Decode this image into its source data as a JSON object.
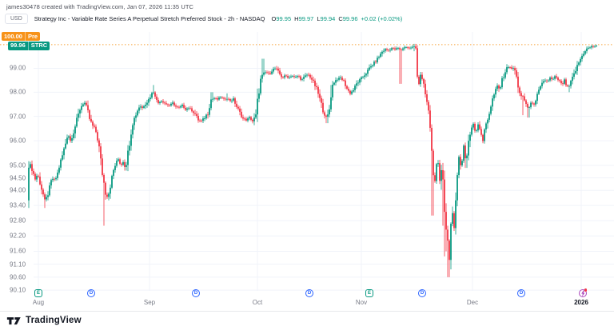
{
  "attribution": "james30478 created with TradingView.com, Jan 07, 2026 11:35 UTC",
  "header": {
    "currency": "USD",
    "title": "Strategy Inc - Variable Rate Series A Perpetual Stretch Preferred Stock - 2h - NASDAQ",
    "ohlc": {
      "o_label": "O",
      "o": "99.95",
      "h_label": "H",
      "h": "99.97",
      "l_label": "L",
      "l": "99.94",
      "c_label": "C",
      "c": "99.96",
      "change": "+0.02 (+0.02%)"
    }
  },
  "price_labels": {
    "pre": {
      "price": "100.00",
      "label": "Pre"
    },
    "current": {
      "price": "99.96",
      "label": "STRC"
    }
  },
  "footer": {
    "brand": "TradingView"
  },
  "colors": {
    "up": "#089981",
    "down": "#f23645",
    "pre_line": "#f7931a",
    "grid": "#f0f3fa",
    "axis_text": "#787b86",
    "dark_text": "#131722"
  },
  "chart_data": {
    "type": "candlestick",
    "title": "Strategy Inc - Variable Rate Series A Perpetual Stretch Preferred Stock",
    "symbol": "STRC",
    "exchange": "NASDAQ",
    "timeframe": "2h",
    "scale_type": "log",
    "price_line_value": 100.0,
    "last_price": 99.96,
    "session_high": 99.97,
    "session_low": 99.94,
    "session_open": 99.95,
    "y_axis_labels": [
      {
        "text": "99.00",
        "value": 99.0
      },
      {
        "text": "98.00",
        "value": 98.0
      },
      {
        "text": "97.00",
        "value": 97.0
      },
      {
        "text": "96.00",
        "value": 96.0
      },
      {
        "text": "95.00",
        "value": 95.0
      },
      {
        "text": "94.50",
        "value": 94.5
      },
      {
        "text": "94.00",
        "value": 94.0
      },
      {
        "text": "93.40",
        "value": 93.4
      },
      {
        "text": "92.80",
        "value": 92.8
      },
      {
        "text": "92.20",
        "value": 92.2
      },
      {
        "text": "91.60",
        "value": 91.6
      },
      {
        "text": "91.10",
        "value": 91.1
      },
      {
        "text": "90.60",
        "value": 90.6
      },
      {
        "text": "90.10",
        "value": 90.1
      }
    ],
    "x_axis_labels": [
      {
        "text": "Aug",
        "x": 48
      },
      {
        "text": "Sep",
        "x": 187
      },
      {
        "text": "Oct",
        "x": 322
      },
      {
        "text": "Nov",
        "x": 452
      },
      {
        "text": "Dec",
        "x": 591
      },
      {
        "text": "2026",
        "x": 727,
        "year": true
      }
    ],
    "markers": [
      {
        "type": "earnings",
        "label": "E",
        "x": 48
      },
      {
        "type": "dividend",
        "label": "D",
        "x": 114
      },
      {
        "type": "dividend",
        "label": "D",
        "x": 245
      },
      {
        "type": "dividend",
        "label": "D",
        "x": 387
      },
      {
        "type": "earnings",
        "label": "E",
        "x": 462
      },
      {
        "type": "dividend",
        "label": "D",
        "x": 528
      },
      {
        "type": "dividend",
        "label": "D",
        "x": 652
      },
      {
        "type": "upcoming",
        "label": "",
        "x": 729
      }
    ],
    "scale": {
      "anchor_price": 99.96,
      "anchor_y": 57,
      "b": 2948
    },
    "x_range": [
      36,
      746
    ],
    "candle_step": 2,
    "plot": {
      "top": 40,
      "bottom": 364,
      "grid_left": 42,
      "grid_right": 768
    },
    "path": [
      [
        34,
        93.6
      ],
      [
        36,
        95.05
      ],
      [
        40,
        94.85
      ],
      [
        44,
        94.45
      ],
      [
        47,
        94.65
      ],
      [
        50,
        94.3
      ],
      [
        53,
        93.95
      ],
      [
        56,
        93.6
      ],
      [
        59,
        93.75
      ],
      [
        62,
        94.1
      ],
      [
        65,
        94.5
      ],
      [
        68,
        94.4
      ],
      [
        71,
        94.55
      ],
      [
        74,
        94.95
      ],
      [
        78,
        95.4
      ],
      [
        82,
        95.9
      ],
      [
        85,
        96.3
      ],
      [
        88,
        96.0
      ],
      [
        91,
        96.25
      ],
      [
        94,
        96.6
      ],
      [
        97,
        96.95
      ],
      [
        100,
        97.3
      ],
      [
        103,
        97.5
      ],
      [
        106,
        97.55
      ],
      [
        109,
        97.3
      ],
      [
        112,
        96.9
      ],
      [
        115,
        96.65
      ],
      [
        118,
        96.5
      ],
      [
        121,
        96.3
      ],
      [
        124,
        95.7
      ],
      [
        127,
        94.9
      ],
      [
        130,
        94.3
      ],
      [
        133,
        93.7
      ],
      [
        136,
        93.9
      ],
      [
        139,
        94.35
      ],
      [
        142,
        94.8
      ],
      [
        145,
        95.1
      ],
      [
        148,
        95.25
      ],
      [
        151,
        95.0
      ],
      [
        154,
        95.15
      ],
      [
        157,
        94.9
      ],
      [
        160,
        95.5
      ],
      [
        163,
        96.2
      ],
      [
        166,
        96.75
      ],
      [
        169,
        97.0
      ],
      [
        172,
        97.25
      ],
      [
        175,
        97.45
      ],
      [
        178,
        97.35
      ],
      [
        181,
        97.5
      ],
      [
        184,
        97.6
      ],
      [
        187,
        97.75
      ],
      [
        190,
        97.95
      ],
      [
        193,
        98.05
      ],
      [
        195,
        97.7
      ],
      [
        198,
        97.55
      ],
      [
        201,
        97.65
      ],
      [
        204,
        97.6
      ],
      [
        208,
        97.5
      ],
      [
        212,
        97.45
      ],
      [
        216,
        97.55
      ],
      [
        220,
        97.4
      ],
      [
        224,
        97.35
      ],
      [
        228,
        97.45
      ],
      [
        232,
        97.3
      ],
      [
        236,
        97.35
      ],
      [
        240,
        97.25
      ],
      [
        244,
        97.1
      ],
      [
        248,
        96.85
      ],
      [
        252,
        96.8
      ],
      [
        256,
        96.95
      ],
      [
        260,
        97.15
      ],
      [
        264,
        97.7
      ],
      [
        268,
        97.75
      ],
      [
        272,
        97.7
      ],
      [
        276,
        97.8
      ],
      [
        280,
        97.7
      ],
      [
        284,
        97.75
      ],
      [
        288,
        97.65
      ],
      [
        292,
        97.7
      ],
      [
        296,
        97.4
      ],
      [
        300,
        97.15
      ],
      [
        304,
        96.9
      ],
      [
        308,
        96.85
      ],
      [
        312,
        96.95
      ],
      [
        316,
        96.8
      ],
      [
        320,
        97.0
      ],
      [
        323,
        97.9
      ],
      [
        326,
        98.5
      ],
      [
        329,
        98.75
      ],
      [
        333,
        98.85
      ],
      [
        337,
        98.75
      ],
      [
        341,
        98.95
      ],
      [
        345,
        99.0
      ],
      [
        349,
        98.8
      ],
      [
        353,
        98.6
      ],
      [
        357,
        98.7
      ],
      [
        361,
        98.6
      ],
      [
        365,
        98.7
      ],
      [
        369,
        98.6
      ],
      [
        373,
        98.7
      ],
      [
        377,
        98.5
      ],
      [
        381,
        98.65
      ],
      [
        385,
        98.75
      ],
      [
        389,
        98.6
      ],
      [
        393,
        98.35
      ],
      [
        397,
        98.05
      ],
      [
        401,
        97.6
      ],
      [
        405,
        97.15
      ],
      [
        409,
        96.9
      ],
      [
        412,
        97.3
      ],
      [
        415,
        98.2
      ],
      [
        418,
        98.45
      ],
      [
        422,
        98.55
      ],
      [
        426,
        98.6
      ],
      [
        430,
        98.45
      ],
      [
        434,
        98.15
      ],
      [
        438,
        97.95
      ],
      [
        442,
        98.1
      ],
      [
        446,
        98.35
      ],
      [
        450,
        98.5
      ],
      [
        454,
        98.65
      ],
      [
        458,
        98.8
      ],
      [
        462,
        99.0
      ],
      [
        466,
        99.15
      ],
      [
        470,
        99.3
      ],
      [
        474,
        99.5
      ],
      [
        478,
        99.7
      ],
      [
        482,
        99.8
      ],
      [
        486,
        99.75
      ],
      [
        490,
        99.85
      ],
      [
        494,
        99.8
      ],
      [
        498,
        99.85
      ],
      [
        501,
        99.75
      ],
      [
        504,
        99.85
      ],
      [
        508,
        99.9
      ],
      [
        512,
        99.85
      ],
      [
        516,
        99.9
      ],
      [
        520,
        99.85
      ],
      [
        523,
        98.2
      ],
      [
        526,
        98.75
      ],
      [
        529,
        98.4
      ],
      [
        532,
        97.9
      ],
      [
        535,
        97.4
      ],
      [
        538,
        96.6
      ],
      [
        541,
        95.0
      ],
      [
        544,
        94.3
      ],
      [
        547,
        95.35
      ],
      [
        550,
        94.4
      ],
      [
        553,
        95.2
      ],
      [
        556,
        93.1
      ],
      [
        559,
        92.4
      ],
      [
        562,
        91.2
      ],
      [
        565,
        93.3
      ],
      [
        568,
        92.7
      ],
      [
        571,
        94.2
      ],
      [
        574,
        95.3
      ],
      [
        577,
        94.9
      ],
      [
        580,
        95.8
      ],
      [
        583,
        95.1
      ],
      [
        586,
        96.0
      ],
      [
        589,
        96.4
      ],
      [
        592,
        96.7
      ],
      [
        595,
        96.3
      ],
      [
        598,
        96.7
      ],
      [
        601,
        96.4
      ],
      [
        604,
        96.0
      ],
      [
        607,
        96.6
      ],
      [
        610,
        96.9
      ],
      [
        613,
        97.3
      ],
      [
        616,
        97.7
      ],
      [
        619,
        98.0
      ],
      [
        622,
        98.25
      ],
      [
        625,
        98.1
      ],
      [
        628,
        98.5
      ],
      [
        631,
        98.8
      ],
      [
        634,
        99.0
      ],
      [
        637,
        99.1
      ],
      [
        640,
        98.95
      ],
      [
        643,
        99.05
      ],
      [
        646,
        98.6
      ],
      [
        649,
        98.1
      ],
      [
        652,
        97.8
      ],
      [
        655,
        97.75
      ],
      [
        658,
        97.5
      ],
      [
        661,
        97.3
      ],
      [
        664,
        97.55
      ],
      [
        667,
        97.45
      ],
      [
        670,
        97.7
      ],
      [
        673,
        97.95
      ],
      [
        676,
        98.2
      ],
      [
        679,
        98.4
      ],
      [
        682,
        98.5
      ],
      [
        685,
        98.45
      ],
      [
        688,
        98.6
      ],
      [
        691,
        98.5
      ],
      [
        694,
        98.65
      ],
      [
        697,
        98.55
      ],
      [
        700,
        98.45
      ],
      [
        703,
        98.3
      ],
      [
        706,
        98.5
      ],
      [
        709,
        98.2
      ],
      [
        712,
        98.25
      ],
      [
        715,
        98.5
      ],
      [
        718,
        98.75
      ],
      [
        721,
        99.0
      ],
      [
        724,
        99.25
      ],
      [
        727,
        99.45
      ],
      [
        730,
        99.65
      ],
      [
        733,
        99.8
      ],
      [
        736,
        99.85
      ],
      [
        739,
        99.9
      ],
      [
        742,
        99.93
      ],
      [
        746,
        99.96
      ]
    ],
    "wick_lows": [
      [
        36,
        93.3
      ],
      [
        56,
        93.3
      ],
      [
        130,
        92.6
      ],
      [
        409,
        96.72
      ],
      [
        501,
        98.35
      ],
      [
        541,
        93.0
      ],
      [
        554,
        92.6
      ],
      [
        556,
        91.4
      ],
      [
        559,
        91.6
      ],
      [
        561,
        90.6
      ],
      [
        563,
        90.9
      ],
      [
        583,
        94.9
      ],
      [
        604,
        95.9
      ],
      [
        654,
        97.05
      ],
      [
        661,
        96.95
      ],
      [
        712,
        98.0
      ]
    ],
    "wick_highs": [
      [
        192,
        98.3
      ],
      [
        265,
        98.0
      ],
      [
        284,
        97.95
      ],
      [
        323,
        98.15
      ],
      [
        329,
        99.4
      ],
      [
        415,
        98.3
      ]
    ]
  }
}
